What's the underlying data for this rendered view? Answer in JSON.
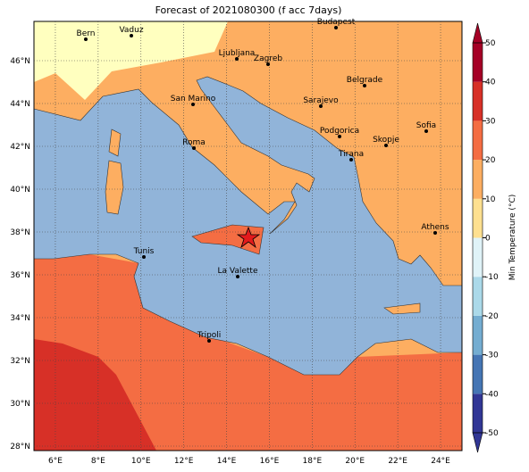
{
  "title": "Forecast of 2021080300 (f acc 7days)",
  "lon_ticks": [
    {
      "value": 6,
      "label": "6°E"
    },
    {
      "value": 8,
      "label": "8°E"
    },
    {
      "value": 10,
      "label": "10°E"
    },
    {
      "value": 12,
      "label": "12°E"
    },
    {
      "value": 14,
      "label": "14°E"
    },
    {
      "value": 16,
      "label": "16°E"
    },
    {
      "value": 18,
      "label": "18°E"
    },
    {
      "value": 20,
      "label": "20°E"
    },
    {
      "value": 22,
      "label": "22°E"
    },
    {
      "value": 24,
      "label": "24°E"
    }
  ],
  "lat_ticks": [
    {
      "value": 28,
      "label": "28°N"
    },
    {
      "value": 30,
      "label": "30°N"
    },
    {
      "value": 32,
      "label": "32°N"
    },
    {
      "value": 34,
      "label": "34°N"
    },
    {
      "value": 36,
      "label": "36°N"
    },
    {
      "value": 38,
      "label": "38°N"
    },
    {
      "value": 40,
      "label": "40°N"
    },
    {
      "value": 42,
      "label": "42°N"
    },
    {
      "value": 44,
      "label": "44°N"
    },
    {
      "value": 46,
      "label": "46°N"
    }
  ],
  "cities": [
    "Bern",
    "Vaduz",
    "Budapest",
    "Ljubljana",
    "Zagreb",
    "Belgrade",
    "San Marino",
    "Sarajevo",
    "Sofia",
    "Podgorica",
    "Skopje",
    "Roma",
    "Tirana",
    "Athens",
    "Tunis",
    "La Valette",
    "Tripoli"
  ],
  "colorbar": {
    "label": "Min Temperature (°C)",
    "ticks": [
      -50,
      -40,
      -30,
      -20,
      -10,
      0,
      10,
      20,
      30,
      40,
      50
    ],
    "colors": [
      "#313695",
      "#4575b4",
      "#74add1",
      "#abd9e9",
      "#e0f3f8",
      "#fee090",
      "#fdae61",
      "#f46d43",
      "#d73027",
      "#a50026"
    ]
  }
}
